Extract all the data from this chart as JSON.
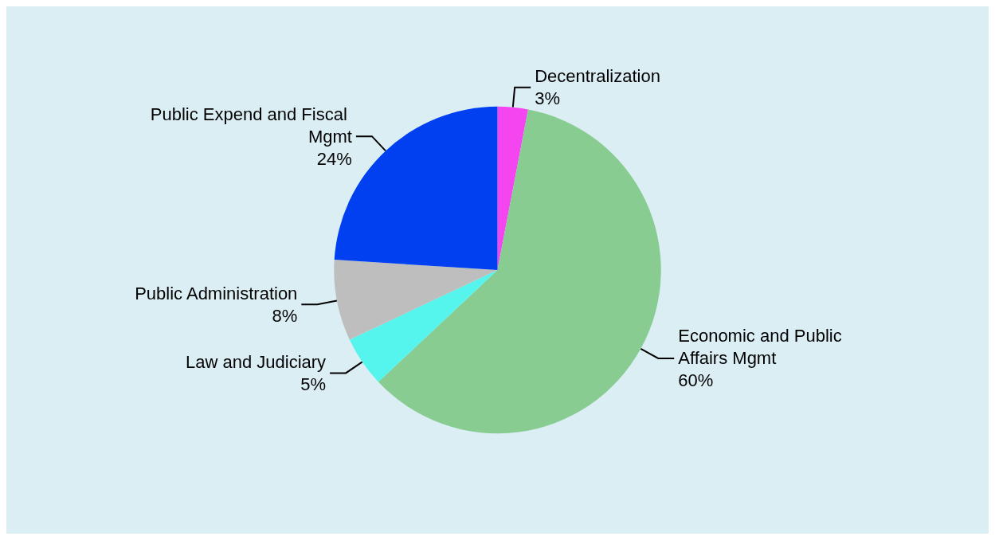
{
  "chart_data": {
    "type": "pie",
    "categories": [
      "Decentralization",
      "Economic and Public Affairs Mgmt",
      "Law and Judiciary",
      "Public Administration",
      "Public Expend and Fiscal Mgmt"
    ],
    "values": [
      3,
      60,
      5,
      8,
      24
    ],
    "colors": [
      "#f545f0",
      "#88cc92",
      "#55f5ee",
      "#bebebe",
      "#0040f0"
    ],
    "value_labels": [
      "3%",
      "60%",
      "5%",
      "8%",
      "24%"
    ],
    "legend": false
  }
}
